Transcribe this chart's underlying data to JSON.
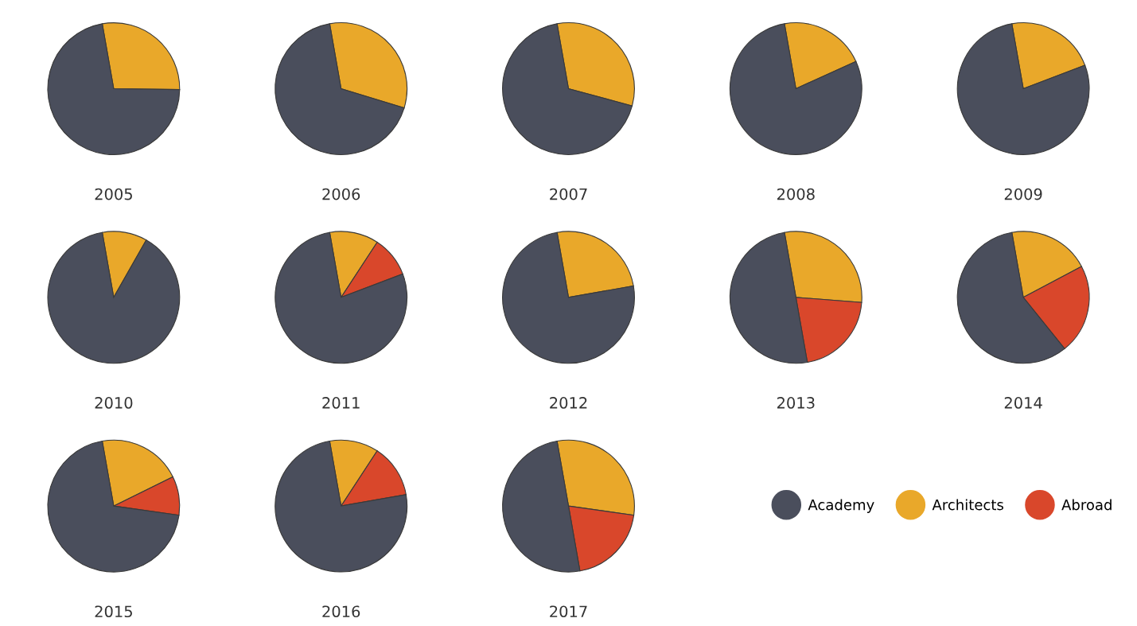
{
  "chart_data": [
    {
      "type": "pie",
      "title": "2005",
      "categories": [
        null,
        null
      ],
      "values": [
        72,
        28
      ],
      "colors": [
        "#4a4e5c",
        "#e9a82a"
      ]
    },
    {
      "type": "pie",
      "title": "2006",
      "categories": [
        null,
        null
      ],
      "values": [
        67.5,
        32.5
      ],
      "colors": [
        "#4a4e5c",
        "#e9a82a"
      ]
    },
    {
      "type": "pie",
      "title": "2007",
      "categories": [
        null,
        null
      ],
      "values": [
        68,
        32
      ],
      "colors": [
        "#4a4e5c",
        "#e9a82a"
      ]
    },
    {
      "type": "pie",
      "title": "2008",
      "categories": [
        null,
        null
      ],
      "values": [
        79,
        21
      ],
      "colors": [
        "#4a4e5c",
        "#e9a82a"
      ]
    },
    {
      "type": "pie",
      "title": "2009",
      "categories": [
        null,
        null
      ],
      "values": [
        78,
        22
      ],
      "colors": [
        "#4a4e5c",
        "#e9a82a"
      ]
    },
    {
      "type": "pie",
      "title": "2010",
      "categories": [
        null,
        null
      ],
      "values": [
        89,
        11
      ],
      "colors": [
        "#4a4e5c",
        "#e9a82a"
      ]
    },
    {
      "type": "pie",
      "title": "2011",
      "categories": [
        null,
        null,
        null
      ],
      "values": [
        78,
        12,
        10
      ],
      "colors": [
        "#4a4e5c",
        "#e9a82a",
        "#d9472b"
      ]
    },
    {
      "type": "pie",
      "title": "2012",
      "categories": [
        null,
        null
      ],
      "values": [
        75,
        25
      ],
      "colors": [
        "#4a4e5c",
        "#e9a82a"
      ]
    },
    {
      "type": "pie",
      "title": "2013",
      "categories": [
        null,
        null,
        null
      ],
      "values": [
        50,
        29,
        21
      ],
      "colors": [
        "#4a4e5c",
        "#e9a82a",
        "#d9472b"
      ]
    },
    {
      "type": "pie",
      "title": "2014",
      "categories": [
        null,
        null,
        null
      ],
      "values": [
        58,
        20,
        22
      ],
      "colors": [
        "#4a4e5c",
        "#e9a82a",
        "#d9472b"
      ]
    },
    {
      "type": "pie",
      "title": "2015",
      "categories": [
        null,
        null,
        null
      ],
      "values": [
        70,
        20.5,
        9.5
      ],
      "colors": [
        "#4a4e5c",
        "#e9a82a",
        "#d9472b"
      ]
    },
    {
      "type": "pie",
      "title": "2016",
      "categories": [
        null,
        null,
        null
      ],
      "values": [
        75,
        12,
        13
      ],
      "colors": [
        "#4a4e5c",
        "#e9a82a",
        "#d9472b"
      ]
    },
    {
      "type": "pie",
      "title": "2017",
      "categories": [
        "Academy",
        "Architects",
        "Abroad"
      ],
      "values": [
        50,
        30,
        20
      ],
      "colors": [
        "#4a4e5c",
        "#e9a82a",
        "#d9472b"
      ],
      "legend": "right"
    }
  ]
}
